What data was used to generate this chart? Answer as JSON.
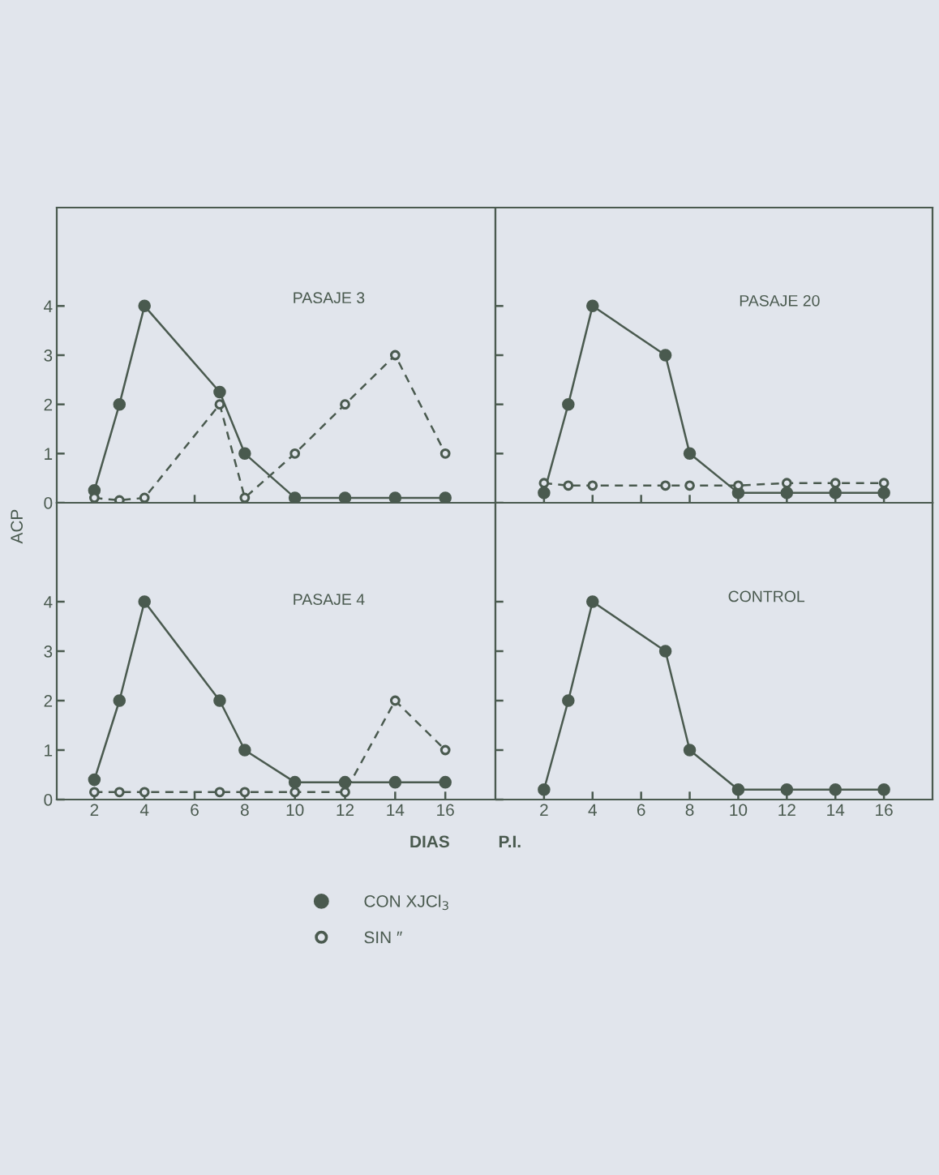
{
  "chart_data": [
    {
      "type": "line",
      "title": "PASAJE 3",
      "ylabel": "ACP",
      "tick_labels": "y",
      "xlim": [
        0.5,
        18
      ],
      "xticks": [
        2,
        4,
        6,
        8,
        10,
        12,
        14,
        16
      ],
      "ylim": [
        0,
        6
      ],
      "yticks": [
        0,
        1,
        2,
        3,
        4
      ],
      "x": [
        2,
        3,
        4,
        7,
        8,
        10,
        12,
        14,
        16
      ],
      "series": [
        {
          "color": "#4a5a4f",
          "marker": "circle",
          "line_style": "solid",
          "values": [
            0.25,
            2,
            4,
            2.25,
            1,
            0.1,
            0.1,
            0.1,
            0.1
          ]
        },
        {
          "color": "#4a5a4f",
          "marker": "circle",
          "line_style": "dashed",
          "values": [
            0.1,
            0.05,
            0.1,
            2,
            0.1,
            1,
            2,
            3,
            1
          ]
        }
      ]
    },
    {
      "type": "line",
      "title": "PASAJE 20",
      "tick_labels": false,
      "xlim": [
        0,
        18
      ],
      "xticks": [
        2,
        4,
        6,
        8,
        10,
        12,
        14,
        16
      ],
      "ylim": [
        0,
        6
      ],
      "yticks": [
        0,
        1,
        2,
        3,
        4
      ],
      "x": [
        2,
        3,
        4,
        7,
        8,
        10,
        12,
        14,
        16
      ],
      "series": [
        {
          "color": "#4a5a4f",
          "marker": "circle",
          "line_style": "solid",
          "values": [
            0.2,
            2,
            4,
            3,
            1,
            0.2,
            0.2,
            0.2,
            0.2
          ]
        },
        {
          "color": "#4a5a4f",
          "marker": "circle",
          "line_style": "dashed",
          "values": [
            0.4,
            0.35,
            0.35,
            0.35,
            0.35,
            0.35,
            0.4,
            0.4,
            0.4
          ]
        }
      ]
    },
    {
      "type": "line",
      "title": "PASAJE 4",
      "xlabel": "DIAS",
      "legend": "bottom",
      "xlim": [
        0.5,
        18
      ],
      "xticks": [
        2,
        4,
        6,
        8,
        10,
        12,
        14,
        16
      ],
      "ylim": [
        0,
        6
      ],
      "yticks": [
        0,
        1,
        2,
        3,
        4
      ],
      "x": [
        2,
        3,
        4,
        7,
        8,
        10,
        12,
        14,
        16
      ],
      "series": [
        {
          "name": "CON XJCl$_{3}$",
          "color": "#4a5a4f",
          "marker": "circle",
          "line_style": "solid",
          "values": [
            0.4,
            2,
            4,
            2,
            1,
            0.35,
            0.35,
            0.35,
            0.35
          ]
        },
        {
          "name": "SIN ″",
          "color": "#4a5a4f",
          "marker": "circle",
          "line_style": "dashed",
          "values": [
            0.15,
            0.15,
            0.15,
            0.15,
            0.15,
            0.15,
            0.15,
            2,
            1
          ]
        }
      ]
    },
    {
      "type": "line",
      "title": "CONTROL",
      "xlabel": "P.I.",
      "tick_labels": "x",
      "xlim": [
        0,
        18
      ],
      "xticks": [
        2,
        4,
        6,
        8,
        10,
        12,
        14,
        16
      ],
      "ylim": [
        0,
        6
      ],
      "yticks": [
        0,
        1,
        2,
        3,
        4
      ],
      "x": [
        2,
        3,
        4,
        7,
        8,
        10,
        12,
        14,
        16
      ],
      "series": [
        {
          "color": "#4a5a4f",
          "marker": "circle",
          "line_style": "solid",
          "values": [
            0.2,
            2,
            4,
            3,
            1,
            0.2,
            0.2,
            0.2,
            0.2
          ]
        }
      ]
    }
  ]
}
